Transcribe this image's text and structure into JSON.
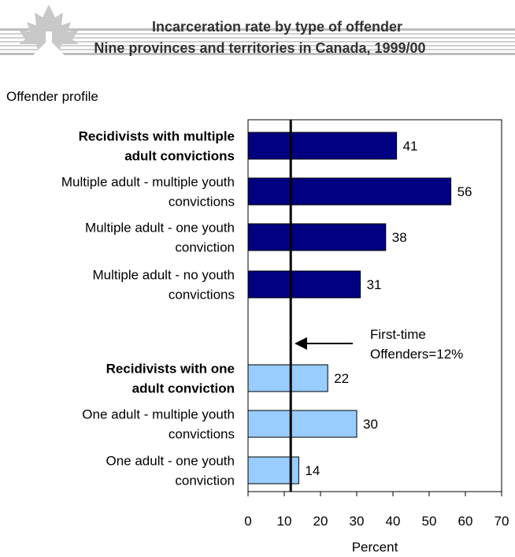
{
  "header": {
    "title_line1": "Incarceration rate by type of offender",
    "title_line2": "Nine provinces and territories in Canada, 1999/00"
  },
  "chart_data": {
    "type": "bar",
    "orientation": "horizontal",
    "y_axis_title": "Offender profile",
    "xlabel": "Percent",
    "xlim": [
      0,
      70
    ],
    "xticks": [
      0,
      10,
      20,
      30,
      40,
      50,
      60,
      70
    ],
    "grid": false,
    "categories": [
      {
        "lines": [
          "Recidivists with multiple",
          "adult convictions"
        ],
        "bold": true,
        "value": 41,
        "group": "multiple"
      },
      {
        "lines": [
          "Multiple adult - multiple youth",
          "convictions"
        ],
        "bold": false,
        "value": 56,
        "group": "multiple"
      },
      {
        "lines": [
          "Multiple adult - one youth",
          "conviction"
        ],
        "bold": false,
        "value": 38,
        "group": "multiple"
      },
      {
        "lines": [
          "Multiple adult - no youth",
          "convictions"
        ],
        "bold": false,
        "value": 31,
        "group": "multiple"
      },
      {
        "lines": [
          "Recidivists with one",
          "adult conviction"
        ],
        "bold": true,
        "value": 22,
        "group": "one"
      },
      {
        "lines": [
          "One adult - multiple youth",
          "convictions"
        ],
        "bold": false,
        "value": 30,
        "group": "one"
      },
      {
        "lines": [
          "One adult - one youth",
          "conviction"
        ],
        "bold": false,
        "value": 14,
        "group": "one"
      }
    ],
    "colors": {
      "multiple": "#000080",
      "one": "#99ccff"
    },
    "reference_line": {
      "value": 12,
      "label_lines": [
        "First-time",
        "Offenders=12%"
      ]
    }
  }
}
